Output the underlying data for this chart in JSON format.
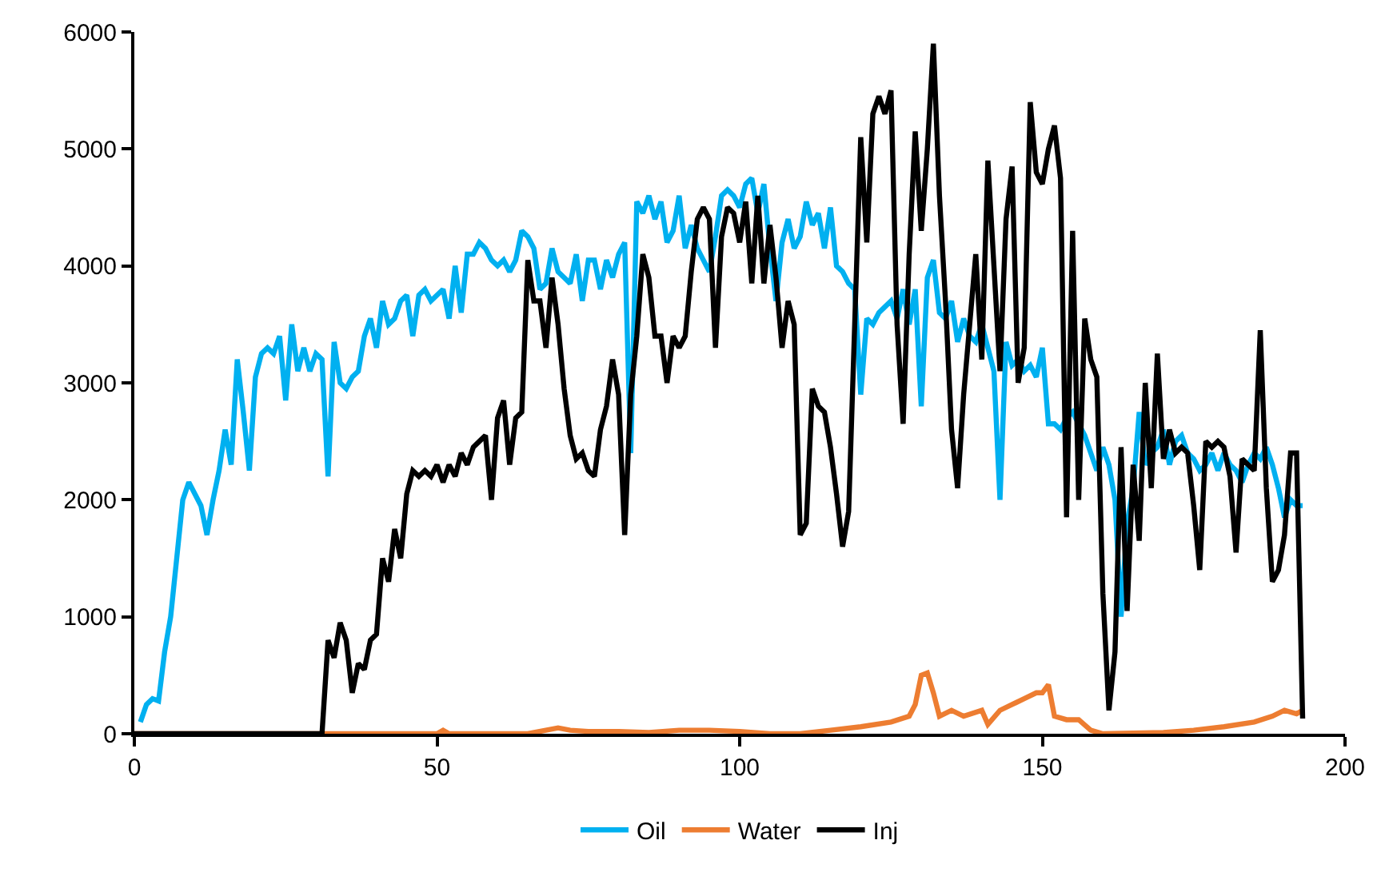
{
  "chart_data": {
    "type": "line",
    "xlim": [
      0,
      200
    ],
    "xticks": [
      0,
      50,
      100,
      150,
      200
    ],
    "ylim": [
      0,
      6000
    ],
    "yticks": [
      0,
      1000,
      2000,
      3000,
      4000,
      5000,
      6000
    ],
    "grid": false,
    "legend": "bottom",
    "marker": "none",
    "line_style": "solid",
    "series": [
      {
        "name": "Oil",
        "color": "#00b0f0",
        "x": [
          1,
          2,
          3,
          4,
          5,
          6,
          7,
          8,
          9,
          10,
          11,
          12,
          13,
          14,
          15,
          16,
          17,
          18,
          19,
          20,
          21,
          22,
          23,
          24,
          25,
          26,
          27,
          28,
          29,
          30,
          31,
          32,
          33,
          34,
          35,
          36,
          37,
          38,
          39,
          40,
          41,
          42,
          43,
          44,
          45,
          46,
          47,
          48,
          49,
          50,
          51,
          52,
          53,
          54,
          55,
          56,
          57,
          58,
          59,
          60,
          61,
          62,
          63,
          64,
          65,
          66,
          67,
          68,
          69,
          70,
          71,
          72,
          73,
          74,
          75,
          76,
          77,
          78,
          79,
          80,
          81,
          82,
          83,
          84,
          85,
          86,
          87,
          88,
          89,
          90,
          91,
          92,
          93,
          94,
          95,
          96,
          97,
          98,
          99,
          100,
          101,
          102,
          103,
          104,
          105,
          106,
          107,
          108,
          109,
          110,
          111,
          112,
          113,
          114,
          115,
          116,
          117,
          118,
          119,
          120,
          121,
          122,
          123,
          124,
          125,
          126,
          127,
          128,
          129,
          130,
          131,
          132,
          133,
          134,
          135,
          136,
          137,
          138,
          139,
          140,
          141,
          142,
          143,
          144,
          145,
          146,
          147,
          148,
          149,
          150,
          151,
          152,
          153,
          154,
          155,
          156,
          157,
          158,
          159,
          160,
          161,
          162,
          163,
          164,
          165,
          166,
          167,
          168,
          169,
          170,
          171,
          172,
          173,
          174,
          175,
          176,
          177,
          178,
          179,
          180,
          181,
          182,
          183,
          184,
          185,
          186,
          187,
          188,
          189,
          190,
          191,
          192,
          193
        ],
        "values": [
          100,
          250,
          300,
          280,
          700,
          1000,
          1500,
          2000,
          2150,
          2050,
          1950,
          1700,
          2000,
          2250,
          2600,
          2300,
          3200,
          2750,
          2250,
          3050,
          3250,
          3300,
          3250,
          3400,
          2850,
          3500,
          3100,
          3300,
          3100,
          3250,
          3200,
          2200,
          3350,
          3000,
          2950,
          3050,
          3100,
          3400,
          3550,
          3300,
          3700,
          3500,
          3550,
          3700,
          3750,
          3400,
          3750,
          3800,
          3700,
          3750,
          3800,
          3550,
          4000,
          3600,
          4100,
          4100,
          4200,
          4150,
          4050,
          4000,
          4050,
          3950,
          4050,
          4300,
          4250,
          4150,
          3800,
          3850,
          4150,
          3950,
          3900,
          3850,
          4100,
          3700,
          4050,
          4050,
          3800,
          4050,
          3900,
          4100,
          4200,
          2400,
          4550,
          4450,
          4600,
          4400,
          4550,
          4200,
          4300,
          4600,
          4150,
          4350,
          4150,
          4050,
          3950,
          4250,
          4600,
          4650,
          4600,
          4500,
          4700,
          4750,
          4450,
          4700,
          4150,
          3700,
          4200,
          4400,
          4150,
          4250,
          4550,
          4350,
          4450,
          4150,
          4500,
          4000,
          3950,
          3850,
          3800,
          2900,
          3550,
          3500,
          3600,
          3650,
          3700,
          3550,
          3800,
          3500,
          3800,
          2800,
          3900,
          4050,
          3600,
          3550,
          3700,
          3350,
          3550,
          3400,
          3350,
          3500,
          3300,
          3100,
          2000,
          3350,
          3150,
          3200,
          3100,
          3150,
          3050,
          3300,
          2650,
          2650,
          2600,
          2700,
          2750,
          2650,
          2550,
          2400,
          2250,
          2450,
          2300,
          2000,
          1000,
          1800,
          2100,
          2750,
          2300,
          2400,
          2450,
          2600,
          2300,
          2500,
          2550,
          2400,
          2350,
          2250,
          2300,
          2400,
          2250,
          2400,
          2300,
          2250,
          2150,
          2300,
          2400,
          2350,
          2450,
          2300,
          2100,
          1850,
          2000,
          1950,
          1950
        ]
      },
      {
        "name": "Water",
        "color": "#ed7d31",
        "x": [
          0,
          31,
          50,
          51,
          52,
          65,
          70,
          72,
          75,
          80,
          85,
          90,
          95,
          100,
          105,
          110,
          115,
          120,
          125,
          128,
          129,
          130,
          131,
          132,
          133,
          135,
          137,
          140,
          141,
          143,
          145,
          147,
          149,
          150,
          151,
          152,
          154,
          156,
          158,
          160,
          170,
          175,
          180,
          185,
          188,
          190,
          192,
          193
        ],
        "values": [
          0,
          0,
          0,
          30,
          0,
          0,
          50,
          30,
          20,
          20,
          10,
          30,
          30,
          20,
          0,
          0,
          30,
          60,
          100,
          150,
          250,
          500,
          520,
          350,
          150,
          200,
          150,
          200,
          80,
          200,
          250,
          300,
          350,
          350,
          420,
          150,
          120,
          120,
          30,
          0,
          10,
          30,
          60,
          100,
          150,
          200,
          170,
          200
        ]
      },
      {
        "name": "Inj",
        "color": "#000000",
        "x": [
          0,
          31,
          32,
          33,
          34,
          35,
          36,
          37,
          38,
          39,
          40,
          41,
          42,
          43,
          44,
          45,
          46,
          47,
          48,
          49,
          50,
          51,
          52,
          53,
          54,
          55,
          56,
          57,
          58,
          59,
          60,
          61,
          62,
          63,
          64,
          65,
          66,
          67,
          68,
          69,
          70,
          71,
          72,
          73,
          74,
          75,
          76,
          77,
          78,
          79,
          80,
          81,
          82,
          83,
          84,
          85,
          86,
          87,
          88,
          89,
          90,
          91,
          92,
          93,
          94,
          95,
          96,
          97,
          98,
          99,
          100,
          101,
          102,
          103,
          104,
          105,
          106,
          107,
          108,
          109,
          110,
          111,
          112,
          113,
          114,
          115,
          116,
          117,
          118,
          119,
          120,
          121,
          122,
          123,
          124,
          125,
          126,
          127,
          128,
          129,
          130,
          131,
          132,
          133,
          134,
          135,
          136,
          137,
          138,
          139,
          140,
          141,
          142,
          143,
          144,
          145,
          146,
          147,
          148,
          149,
          150,
          151,
          152,
          153,
          154,
          155,
          156,
          157,
          158,
          159,
          160,
          161,
          162,
          163,
          164,
          165,
          166,
          167,
          168,
          169,
          170,
          171,
          172,
          173,
          174,
          175,
          176,
          177,
          178,
          179,
          180,
          181,
          182,
          183,
          184,
          185,
          186,
          187,
          188,
          189,
          190,
          191,
          192,
          193
        ],
        "values": [
          0,
          0,
          800,
          650,
          950,
          800,
          350,
          600,
          550,
          800,
          850,
          1500,
          1300,
          1750,
          1500,
          2050,
          2250,
          2200,
          2250,
          2200,
          2300,
          2150,
          2300,
          2200,
          2400,
          2300,
          2450,
          2500,
          2550,
          2000,
          2700,
          2850,
          2300,
          2700,
          2750,
          4050,
          3700,
          3700,
          3300,
          3900,
          3500,
          2950,
          2550,
          2350,
          2400,
          2250,
          2200,
          2600,
          2800,
          3200,
          2900,
          1700,
          2900,
          3400,
          4100,
          3900,
          3400,
          3400,
          3000,
          3400,
          3300,
          3400,
          3950,
          4400,
          4500,
          4400,
          3300,
          4250,
          4500,
          4450,
          4200,
          4550,
          3850,
          4600,
          3850,
          4350,
          3900,
          3300,
          3700,
          3500,
          1700,
          1800,
          2950,
          2800,
          2750,
          2450,
          2050,
          1600,
          1900,
          3500,
          5100,
          4200,
          5300,
          5450,
          5300,
          5500,
          3500,
          2650,
          4100,
          5150,
          4300,
          5000,
          5900,
          4600,
          3700,
          2600,
          2100,
          2900,
          3500,
          4100,
          3200,
          4900,
          4000,
          3100,
          4400,
          4850,
          3000,
          3300,
          5400,
          4800,
          4700,
          5000,
          5200,
          4750,
          1850,
          4300,
          2000,
          3550,
          3200,
          3050,
          1200,
          200,
          700,
          2450,
          1050,
          2300,
          1650,
          3000,
          2100,
          3250,
          2350,
          2600,
          2400,
          2450,
          2400,
          1950,
          1400,
          2500,
          2450,
          2500,
          2450,
          2200,
          1550,
          2350,
          2300,
          2250,
          3450,
          2100,
          1300,
          1400,
          1700,
          2400,
          2400,
          130
        ]
      }
    ]
  }
}
